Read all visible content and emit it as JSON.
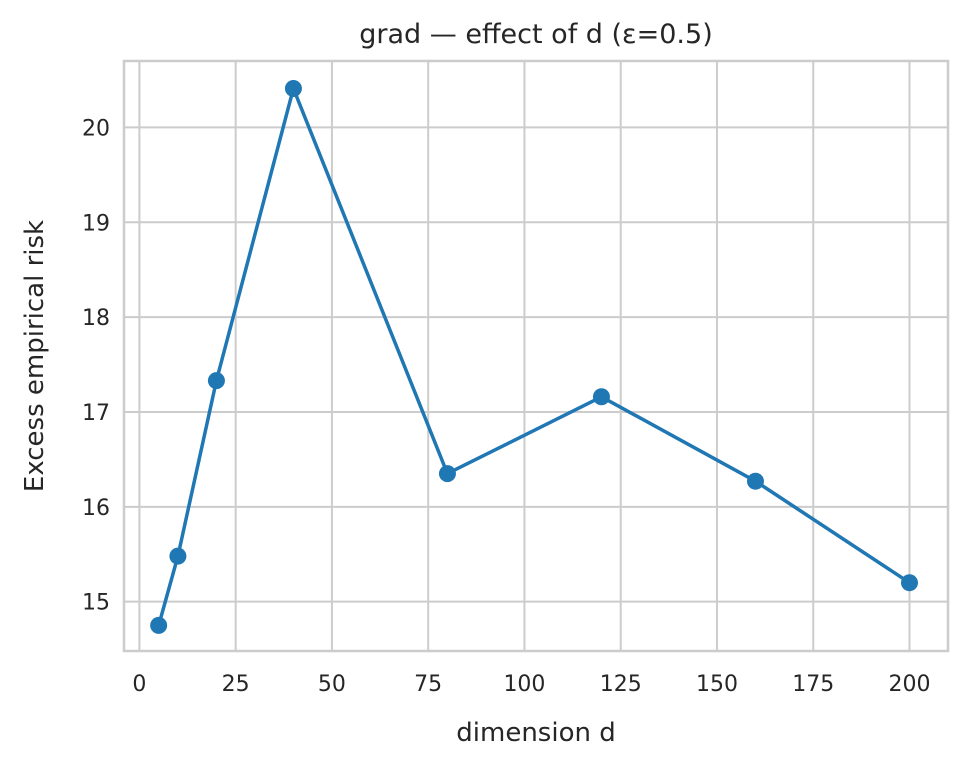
{
  "chart_data": {
    "type": "line",
    "title": "grad — effect of d  (ε=0.5)",
    "xlabel": "dimension d",
    "ylabel": "Excess empirical risk",
    "xlim": [
      -4,
      210
    ],
    "ylim": [
      14.48,
      20.7
    ],
    "x_ticks": [
      0,
      25,
      50,
      75,
      100,
      125,
      150,
      175,
      200
    ],
    "y_ticks": [
      15,
      16,
      17,
      18,
      19,
      20
    ],
    "grid": true,
    "series": [
      {
        "x": [
          5,
          10,
          20,
          40,
          80,
          120,
          160,
          200
        ],
        "y": [
          14.75,
          15.48,
          17.33,
          20.41,
          16.35,
          17.16,
          16.27,
          15.2
        ],
        "color": "#1f77b4",
        "marker": "circle"
      }
    ]
  }
}
